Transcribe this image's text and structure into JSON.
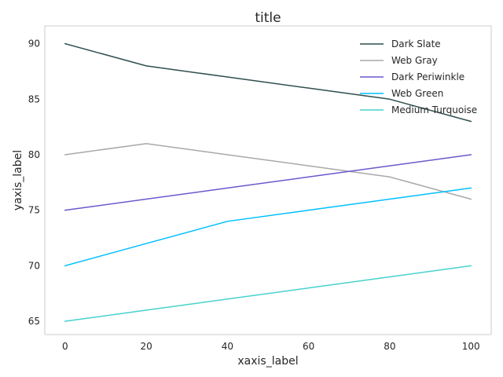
{
  "chart_data": {
    "type": "line",
    "title": "title",
    "xlabel": "xaxis_label",
    "ylabel": "yaxis_label",
    "xlim": [
      -5,
      105
    ],
    "ylim": [
      63.8,
      91.6
    ],
    "xticks": [
      0,
      20,
      40,
      60,
      80,
      100
    ],
    "yticks": [
      65,
      70,
      75,
      80,
      85,
      90
    ],
    "grid": false,
    "legend_position": "top-right",
    "series": [
      {
        "name": "Dark Slate",
        "color": "#2f4f4f",
        "x": [
          0,
          20,
          40,
          60,
          80,
          100
        ],
        "values": [
          90,
          88,
          87,
          86,
          85,
          83
        ]
      },
      {
        "name": "Web Gray",
        "color": "#a9a9a9",
        "x": [
          0,
          20,
          40,
          60,
          80,
          100
        ],
        "values": [
          80,
          81,
          80,
          79,
          78,
          76
        ]
      },
      {
        "name": "Dark Periwinkle",
        "color": "#6a5acd",
        "x": [
          0,
          20,
          40,
          60,
          80,
          100
        ],
        "values": [
          75,
          76,
          77,
          78,
          79,
          80
        ]
      },
      {
        "name": "Web Green",
        "color": "#00bfff",
        "x": [
          0,
          20,
          40,
          60,
          80,
          100
        ],
        "values": [
          70,
          72,
          74,
          75,
          76,
          77
        ]
      },
      {
        "name": "Medium Turquoise",
        "color": "#48d1cc",
        "x": [
          0,
          20,
          40,
          60,
          80,
          100
        ],
        "values": [
          65,
          66,
          67,
          68,
          69,
          70
        ]
      }
    ]
  }
}
